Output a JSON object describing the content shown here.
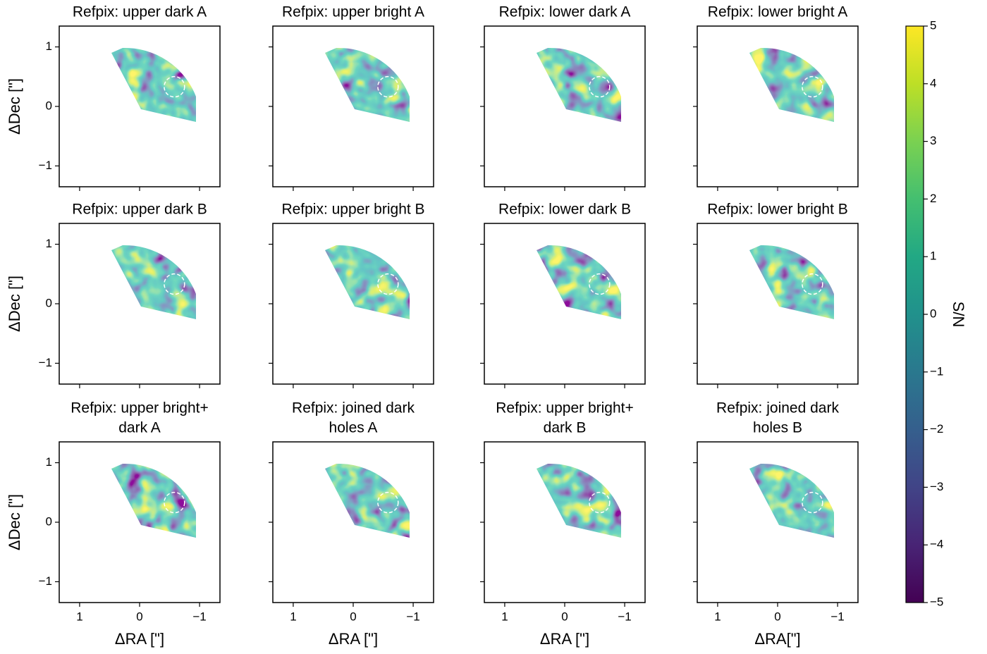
{
  "chart_data": [
    {
      "type": "image",
      "title": [
        "Refpix: upper dark A"
      ],
      "xlim": [
        1.34,
        -1.34
      ],
      "ylim": [
        -1.35,
        1.35
      ],
      "xticks": [
        1,
        0,
        -1
      ],
      "yticks": [
        {
          "value": -1,
          "label": "−1"
        },
        0,
        1
      ],
      "xtick_labels": false,
      "ytick_labels": true,
      "ylabel": "ΔDec [\"]",
      "aperture": {
        "x": -0.58,
        "y": 0.33,
        "r": 0.17
      }
    },
    {
      "type": "image",
      "title": [
        "Refpix: upper bright A"
      ],
      "xlim": [
        1.34,
        -1.34
      ],
      "ylim": [
        -1.35,
        1.35
      ],
      "xticks": [
        1,
        0,
        -1
      ],
      "yticks": [
        -1,
        0,
        1
      ],
      "xtick_labels": false,
      "ytick_labels": false,
      "aperture": {
        "x": -0.58,
        "y": 0.33,
        "r": 0.17
      }
    },
    {
      "type": "image",
      "title": [
        "Refpix: lower dark A"
      ],
      "xlim": [
        1.34,
        -1.34
      ],
      "ylim": [
        -1.35,
        1.35
      ],
      "xticks": [
        1,
        0,
        -1
      ],
      "yticks": [
        -1,
        0,
        1
      ],
      "xtick_labels": false,
      "ytick_labels": false,
      "aperture": {
        "x": -0.58,
        "y": 0.33,
        "r": 0.17
      }
    },
    {
      "type": "image",
      "title": [
        "Refpix: lower bright A"
      ],
      "xlim": [
        1.34,
        -1.34
      ],
      "ylim": [
        -1.35,
        1.35
      ],
      "xticks": [
        1,
        0,
        -1
      ],
      "yticks": [
        -1,
        0,
        1
      ],
      "xtick_labels": false,
      "ytick_labels": false,
      "aperture": {
        "x": -0.58,
        "y": 0.33,
        "r": 0.17
      }
    },
    {
      "type": "image",
      "title": [
        "Refpix: upper dark B"
      ],
      "xlim": [
        1.34,
        -1.34
      ],
      "ylim": [
        -1.35,
        1.35
      ],
      "xticks": [
        1,
        0,
        -1
      ],
      "yticks": [
        {
          "value": -1,
          "label": "−1"
        },
        0,
        1
      ],
      "xtick_labels": false,
      "ytick_labels": true,
      "ylabel": "ΔDec [\"]",
      "aperture": {
        "x": -0.58,
        "y": 0.33,
        "r": 0.17
      }
    },
    {
      "type": "image",
      "title": [
        "Refpix: upper bright B"
      ],
      "xlim": [
        1.34,
        -1.34
      ],
      "ylim": [
        -1.35,
        1.35
      ],
      "xticks": [
        1,
        0,
        -1
      ],
      "yticks": [
        -1,
        0,
        1
      ],
      "xtick_labels": false,
      "ytick_labels": false,
      "aperture": {
        "x": -0.58,
        "y": 0.33,
        "r": 0.17
      }
    },
    {
      "type": "image",
      "title": [
        "Refpix: lower dark B"
      ],
      "xlim": [
        1.34,
        -1.34
      ],
      "ylim": [
        -1.35,
        1.35
      ],
      "xticks": [
        1,
        0,
        -1
      ],
      "yticks": [
        -1,
        0,
        1
      ],
      "xtick_labels": false,
      "ytick_labels": false,
      "aperture": {
        "x": -0.58,
        "y": 0.33,
        "r": 0.17
      }
    },
    {
      "type": "image",
      "title": [
        "Refpix: lower bright B"
      ],
      "xlim": [
        1.34,
        -1.34
      ],
      "ylim": [
        -1.35,
        1.35
      ],
      "xticks": [
        1,
        0,
        -1
      ],
      "yticks": [
        -1,
        0,
        1
      ],
      "xtick_labels": false,
      "ytick_labels": false,
      "aperture": {
        "x": -0.58,
        "y": 0.33,
        "r": 0.17
      }
    },
    {
      "type": "image",
      "title": [
        "Refpix: upper bright+",
        "dark A"
      ],
      "xlim": [
        1.34,
        -1.34
      ],
      "ylim": [
        -1.35,
        1.35
      ],
      "xticks": [
        1,
        0,
        {
          "value": -1,
          "label": "−1"
        }
      ],
      "yticks": [
        {
          "value": -1,
          "label": "−1"
        },
        0,
        1
      ],
      "xtick_labels": true,
      "ytick_labels": true,
      "xlabel": "ΔRA [\"]",
      "ylabel": "ΔDec [\"]",
      "aperture": {
        "x": -0.58,
        "y": 0.33,
        "r": 0.17
      }
    },
    {
      "type": "image",
      "title": [
        "Refpix: joined dark",
        "holes A"
      ],
      "xlim": [
        1.34,
        -1.34
      ],
      "ylim": [
        -1.35,
        1.35
      ],
      "xticks": [
        1,
        0,
        {
          "value": -1,
          "label": "−1"
        }
      ],
      "yticks": [
        -1,
        0,
        1
      ],
      "xtick_labels": true,
      "ytick_labels": false,
      "xlabel": "ΔRA [\"]",
      "aperture": {
        "x": -0.58,
        "y": 0.33,
        "r": 0.17
      }
    },
    {
      "type": "image",
      "title": [
        "Refpix: upper bright+",
        "dark B"
      ],
      "xlim": [
        1.34,
        -1.34
      ],
      "ylim": [
        -1.35,
        1.35
      ],
      "xticks": [
        1,
        0,
        {
          "value": -1,
          "label": "−1"
        }
      ],
      "yticks": [
        -1,
        0,
        1
      ],
      "xtick_labels": true,
      "ytick_labels": false,
      "xlabel": "ΔRA [\"]",
      "aperture": {
        "x": -0.58,
        "y": 0.33,
        "r": 0.17
      }
    },
    {
      "type": "image",
      "title": [
        "Refpix: joined dark",
        "holes B"
      ],
      "xlim": [
        1.34,
        -1.34
      ],
      "ylim": [
        -1.35,
        1.35
      ],
      "xticks": [
        1,
        0,
        {
          "value": -1,
          "label": "−1"
        }
      ],
      "yticks": [
        -1,
        0,
        1
      ],
      "xtick_labels": true,
      "ytick_labels": false,
      "xlabel": "ΔRA[\"]",
      "aperture": {
        "x": -0.58,
        "y": 0.33,
        "r": 0.17
      }
    }
  ],
  "colorbar": {
    "label": "S/N",
    "lim": [
      -5,
      5
    ],
    "ticks": [
      {
        "value": -5,
        "label": "−5"
      },
      {
        "value": -4,
        "label": "−4"
      },
      {
        "value": -3,
        "label": "−3"
      },
      {
        "value": -2,
        "label": "−2"
      },
      {
        "value": -1,
        "label": "−1"
      },
      0,
      1,
      2,
      3,
      4,
      5
    ]
  }
}
